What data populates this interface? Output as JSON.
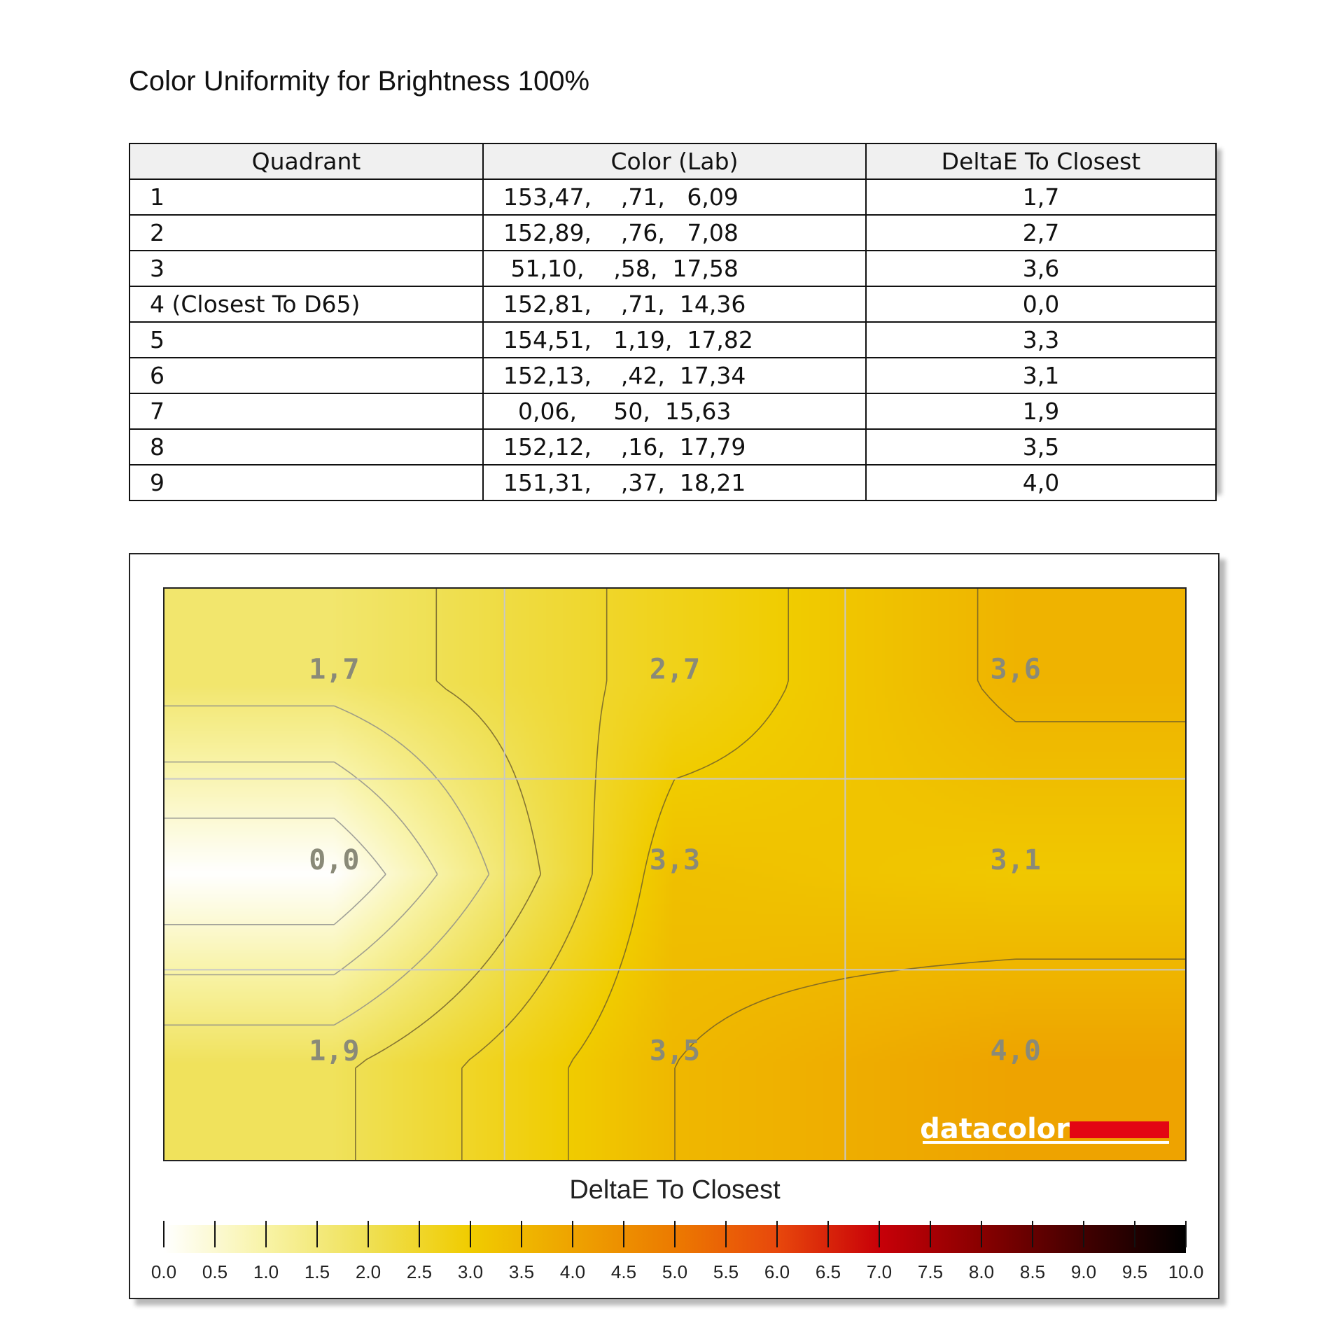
{
  "title": "Color Uniformity for Brightness 100%",
  "table": {
    "headers": [
      "Quadrant",
      "Color (Lab)",
      "DeltaE To Closest"
    ],
    "rows": [
      {
        "quadrant": "1",
        "lab": "153,47,    ,71,   6,09",
        "delta": "1,7"
      },
      {
        "quadrant": "2",
        "lab": "152,89,    ,76,   7,08",
        "delta": "2,7"
      },
      {
        "quadrant": "3",
        "lab": " 51,10,    ,58,  17,58",
        "delta": "3,6"
      },
      {
        "quadrant": "4 (Closest To D65)",
        "lab": "152,81,    ,71,  14,36",
        "delta": "0,0"
      },
      {
        "quadrant": "5",
        "lab": "154,51,   1,19,  17,82",
        "delta": "3,3"
      },
      {
        "quadrant": "6",
        "lab": "152,13,    ,42,  17,34",
        "delta": "3,1"
      },
      {
        "quadrant": "7",
        "lab": "  0,06,     50,  15,63",
        "delta": "1,9"
      },
      {
        "quadrant": "8",
        "lab": "152,12,    ,16,  17,79",
        "delta": "3,5"
      },
      {
        "quadrant": "9",
        "lab": "151,31,    ,37,  18,21",
        "delta": "4,0"
      }
    ]
  },
  "chart_data": {
    "type": "heatmap",
    "grid": {
      "rows": 3,
      "cols": 3
    },
    "cells": [
      {
        "row": 0,
        "col": 0,
        "value": 1.7,
        "label": "1,7"
      },
      {
        "row": 0,
        "col": 1,
        "value": 2.7,
        "label": "2,7"
      },
      {
        "row": 0,
        "col": 2,
        "value": 3.6,
        "label": "3,6"
      },
      {
        "row": 1,
        "col": 0,
        "value": 0.0,
        "label": "0,0"
      },
      {
        "row": 1,
        "col": 1,
        "value": 3.3,
        "label": "3,3"
      },
      {
        "row": 1,
        "col": 2,
        "value": 3.1,
        "label": "3,1"
      },
      {
        "row": 2,
        "col": 0,
        "value": 1.9,
        "label": "1,9"
      },
      {
        "row": 2,
        "col": 1,
        "value": 3.5,
        "label": "3,5"
      },
      {
        "row": 2,
        "col": 2,
        "value": 4.0,
        "label": "4,0"
      }
    ],
    "colorbar": {
      "title": "DeltaE To Closest",
      "min": 0,
      "max": 10,
      "ticks": [
        "0.0",
        "0.5",
        "1.0",
        "1.5",
        "2.0",
        "2.5",
        "3.0",
        "3.5",
        "4.0",
        "4.5",
        "5.0",
        "5.5",
        "6.0",
        "6.5",
        "7.0",
        "7.5",
        "8.0",
        "8.5",
        "9.0",
        "9.5",
        "10.0"
      ],
      "colors": [
        "#ffffff",
        "#f8f3a6",
        "#efe054",
        "#f0cc00",
        "#eea300",
        "#ec7a00",
        "#e8480c",
        "#c80008",
        "#880000",
        "#420000",
        "#000000"
      ]
    },
    "contour_levels": [
      0.5,
      1.0,
      1.5,
      2.0,
      2.5,
      3.0,
      3.5
    ],
    "gridlines": true,
    "watermark": "datacolor"
  }
}
